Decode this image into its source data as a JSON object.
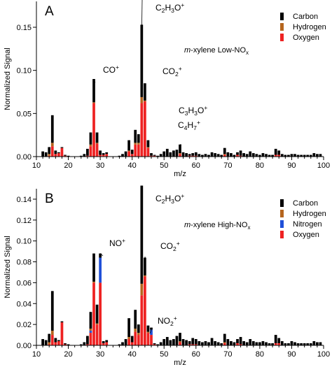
{
  "colors": {
    "carbon": "#000000",
    "hydrogen": "#b5651d",
    "nitrogen": "#1f4fd8",
    "oxygen": "#ee2222",
    "axis": "#000000"
  },
  "chart_data": [
    {
      "panel": "A",
      "type": "bar",
      "stacked": true,
      "subtitle": {
        "prefix": "m",
        "mid": "-xylene Low-NO",
        "sub": "x"
      },
      "xlabel": "m/z",
      "ylabel": "Normalized Signal",
      "xlim": [
        10,
        100
      ],
      "ylim": [
        0,
        0.18
      ],
      "xticks": [
        10,
        20,
        30,
        40,
        50,
        60,
        70,
        80,
        90,
        100
      ],
      "yticks": [
        0.0,
        0.05,
        0.1,
        0.15
      ],
      "ytick_labels": [
        "0.00",
        "0.05",
        "0.10",
        "0.15"
      ],
      "legend": {
        "position": "top-right",
        "entries": [
          "Carbon",
          "Hydrogen",
          "Oxygen"
        ]
      },
      "series": [
        {
          "name": "Carbon",
          "x": [
            12,
            13,
            14,
            15,
            16,
            17,
            18,
            19,
            20,
            24,
            25,
            26,
            27,
            28,
            29,
            30,
            31,
            32,
            36,
            37,
            38,
            39,
            40,
            41,
            42,
            43,
            44,
            45,
            46,
            47,
            48,
            49,
            50,
            51,
            52,
            53,
            54,
            55,
            56,
            57,
            58,
            59,
            60,
            61,
            62,
            63,
            64,
            65,
            66,
            67,
            68,
            69,
            70,
            71,
            72,
            73,
            74,
            75,
            76,
            77,
            78,
            79,
            80,
            81,
            82,
            83,
            84,
            85,
            86,
            87,
            88,
            89,
            90,
            91,
            92,
            93,
            94,
            95,
            96,
            97,
            98,
            99
          ],
          "values": [
            0.006,
            0.005,
            0.008,
            0.032,
            0.004,
            0.001,
            0.001,
            0.001,
            0.001,
            0.001,
            0.003,
            0.008,
            0.014,
            0.027,
            0.012,
            0.005,
            0.002,
            0.002,
            0.001,
            0.003,
            0.006,
            0.012,
            0.005,
            0.015,
            0.01,
            0.084,
            0.02,
            0.008,
            0.003,
            0.001,
            0.001,
            0.003,
            0.006,
            0.009,
            0.005,
            0.007,
            0.008,
            0.01,
            0.005,
            0.004,
            0.002,
            0.003,
            0.004,
            0.003,
            0.002,
            0.003,
            0.002,
            0.005,
            0.004,
            0.003,
            0.002,
            0.007,
            0.005,
            0.004,
            0.002,
            0.003,
            0.006,
            0.004,
            0.003,
            0.006,
            0.004,
            0.003,
            0.002,
            0.004,
            0.003,
            0.002,
            0.002,
            0.007,
            0.005,
            0.003,
            0.002,
            0.002,
            0.003,
            0.003,
            0.002,
            0.002,
            0.002,
            0.002,
            0.002,
            0.004,
            0.003,
            0.003
          ]
        },
        {
          "name": "Hydrogen",
          "x": [
            14,
            15,
            27,
            28,
            29,
            39,
            41,
            42,
            43,
            44,
            45,
            55,
            69
          ],
          "values": [
            0.002,
            0.004,
            0.002,
            0.001,
            0.001,
            0.001,
            0.002,
            0.002,
            0.007,
            0.001,
            0.001,
            0.001,
            0.001
          ]
        },
        {
          "name": "Oxygen",
          "x": [
            14,
            15,
            16,
            17,
            18,
            19,
            26,
            27,
            28,
            29,
            30,
            31,
            32,
            39,
            40,
            41,
            42,
            43,
            44,
            45,
            46,
            47,
            55,
            58,
            59,
            60,
            69,
            73,
            74,
            85,
            86
          ],
          "values": [
            0.001,
            0.012,
            0.003,
            0.004,
            0.01,
            0.001,
            0.001,
            0.012,
            0.062,
            0.015,
            0.002,
            0.002,
            0.003,
            0.006,
            0.003,
            0.014,
            0.014,
            0.062,
            0.064,
            0.01,
            0.001,
            0.001,
            0.003,
            0.001,
            0.001,
            0.001,
            0.002,
            0.002,
            0.001,
            0.002,
            0.002
          ]
        }
      ],
      "annotations": [
        {
          "parts": [
            {
              "t": "C"
            },
            {
              "t": "2",
              "sub": true
            },
            {
              "t": "H"
            },
            {
              "t": "3",
              "sub": true
            },
            {
              "t": "O"
            },
            {
              "t": "+",
              "sup": true
            }
          ],
          "x": 43,
          "y": 0.145
        },
        {
          "parts": [
            {
              "t": "CO"
            },
            {
              "t": "+",
              "sup": true
            }
          ],
          "x": 28,
          "y": 0.088
        },
        {
          "parts": [
            {
              "t": "CO"
            },
            {
              "t": "2",
              "sub": true
            },
            {
              "t": "+",
              "sup": true
            }
          ],
          "x": 44,
          "y": 0.085
        },
        {
          "parts": [
            {
              "t": "C"
            },
            {
              "t": "3",
              "sub": true
            },
            {
              "t": "H"
            },
            {
              "t": "3",
              "sub": true
            },
            {
              "t": "O"
            },
            {
              "t": "+",
              "sup": true
            }
          ],
          "x": 55,
          "y": 0.014
        },
        {
          "parts": [
            {
              "t": "C"
            },
            {
              "t": "4",
              "sub": true
            },
            {
              "t": "H"
            },
            {
              "t": "7",
              "sub": true
            },
            {
              "t": "+",
              "sup": true
            }
          ],
          "x": 55,
          "y": 0.014
        }
      ]
    },
    {
      "panel": "B",
      "type": "bar",
      "stacked": true,
      "subtitle": {
        "prefix": "m",
        "mid": "-xylene High-NO",
        "sub": "x"
      },
      "xlabel": "m/z",
      "ylabel": "Normalized Signal",
      "xlim": [
        10,
        100
      ],
      "ylim": [
        0,
        0.15
      ],
      "xticks": [
        10,
        20,
        30,
        40,
        50,
        60,
        70,
        80,
        90,
        100
      ],
      "yticks": [
        0.0,
        0.02,
        0.04,
        0.06,
        0.08,
        0.1,
        0.12,
        0.14
      ],
      "ytick_labels": [
        "0.00",
        "0.02",
        "0.04",
        "0.06",
        "0.08",
        "0.10",
        "0.12",
        "0.14"
      ],
      "legend": {
        "position": "top-right",
        "entries": [
          "Carbon",
          "Hydrogen",
          "Nitrogen",
          "Oxygen"
        ]
      },
      "series": [
        {
          "name": "Carbon",
          "x": [
            12,
            13,
            14,
            15,
            16,
            17,
            18,
            19,
            20,
            24,
            25,
            26,
            27,
            28,
            29,
            30,
            31,
            32,
            36,
            37,
            38,
            39,
            40,
            41,
            42,
            43,
            44,
            45,
            46,
            47,
            48,
            49,
            50,
            51,
            52,
            53,
            54,
            55,
            56,
            57,
            58,
            59,
            60,
            61,
            62,
            63,
            64,
            65,
            66,
            67,
            68,
            69,
            70,
            71,
            72,
            73,
            74,
            75,
            76,
            77,
            78,
            79,
            80,
            81,
            82,
            83,
            84,
            85,
            86,
            87,
            88,
            89,
            90,
            91,
            92,
            93,
            94,
            95,
            96,
            97,
            98,
            99
          ],
          "values": [
            0.006,
            0.005,
            0.008,
            0.038,
            0.004,
            0.001,
            0.001,
            0.001,
            0.001,
            0.001,
            0.003,
            0.008,
            0.016,
            0.027,
            0.018,
            0.004,
            0.002,
            0.002,
            0.001,
            0.003,
            0.006,
            0.018,
            0.006,
            0.018,
            0.008,
            0.094,
            0.017,
            0.006,
            0.002,
            0.001,
            0.001,
            0.003,
            0.006,
            0.008,
            0.005,
            0.006,
            0.009,
            0.008,
            0.006,
            0.005,
            0.003,
            0.006,
            0.005,
            0.004,
            0.003,
            0.004,
            0.003,
            0.007,
            0.004,
            0.003,
            0.002,
            0.008,
            0.006,
            0.004,
            0.003,
            0.004,
            0.007,
            0.004,
            0.003,
            0.006,
            0.004,
            0.003,
            0.003,
            0.004,
            0.003,
            0.002,
            0.002,
            0.008,
            0.005,
            0.004,
            0.002,
            0.002,
            0.004,
            0.003,
            0.002,
            0.002,
            0.002,
            0.002,
            0.002,
            0.004,
            0.003,
            0.003
          ]
        },
        {
          "name": "Hydrogen",
          "x": [
            14,
            15,
            27,
            28,
            29,
            39,
            41,
            42,
            43,
            44,
            45,
            55,
            69
          ],
          "values": [
            0.002,
            0.004,
            0.002,
            0.001,
            0.001,
            0.002,
            0.003,
            0.002,
            0.011,
            0.001,
            0.001,
            0.001,
            0.001
          ]
        },
        {
          "name": "Nitrogen",
          "x": [
            27,
            30,
            46
          ],
          "values": [
            0.002,
            0.024,
            0.005
          ]
        },
        {
          "name": "Oxygen",
          "x": [
            14,
            15,
            16,
            17,
            18,
            19,
            26,
            27,
            28,
            29,
            30,
            31,
            32,
            39,
            40,
            41,
            42,
            43,
            44,
            45,
            46,
            47,
            55,
            58,
            59,
            60,
            69,
            73,
            74,
            85,
            86
          ],
          "values": [
            0.001,
            0.01,
            0.003,
            0.004,
            0.022,
            0.001,
            0.001,
            0.012,
            0.06,
            0.02,
            0.06,
            0.002,
            0.003,
            0.006,
            0.003,
            0.013,
            0.01,
            0.048,
            0.066,
            0.012,
            0.01,
            0.001,
            0.003,
            0.001,
            0.001,
            0.001,
            0.002,
            0.002,
            0.001,
            0.002,
            0.002
          ]
        }
      ],
      "annotations": [
        {
          "parts": [
            {
              "t": "C"
            },
            {
              "t": "2",
              "sub": true
            },
            {
              "t": "H"
            },
            {
              "t": "3",
              "sub": true
            },
            {
              "t": "O"
            },
            {
              "t": "+",
              "sup": true
            }
          ],
          "x": 43,
          "y": 0.153
        },
        {
          "parts": [
            {
              "t": "NO"
            },
            {
              "t": "+",
              "sup": true
            }
          ],
          "x": 30,
          "y": 0.088
        },
        {
          "parts": [
            {
              "t": "CO"
            },
            {
              "t": "2",
              "sub": true
            },
            {
              "t": "+",
              "sup": true
            }
          ],
          "x": 44,
          "y": 0.085
        },
        {
          "parts": [
            {
              "t": "NO"
            },
            {
              "t": "2",
              "sub": true
            },
            {
              "t": "+",
              "sup": true
            }
          ],
          "x": 46,
          "y": 0.015
        }
      ]
    }
  ]
}
